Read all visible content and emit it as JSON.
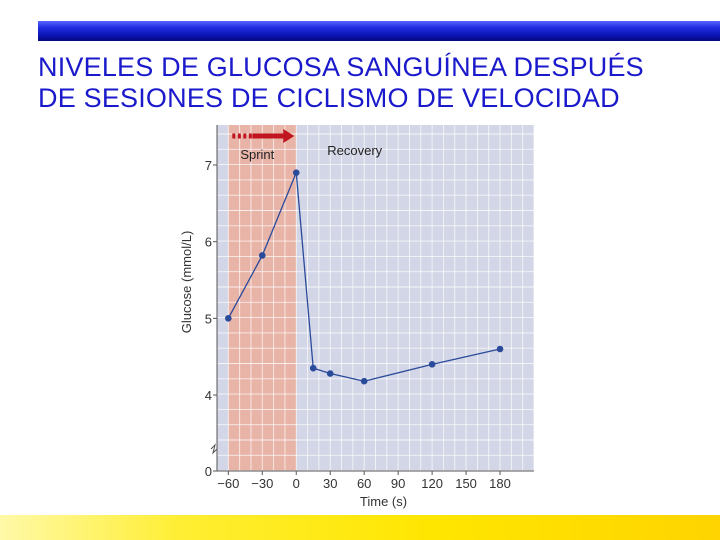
{
  "slide": {
    "title_line1": "NIVELES DE GLUCOSA SANGUÍNEA DESPUÉS",
    "title_line2": "DE SESIONES DE CICLISMO DE VELOCIDAD",
    "title_color": "#1a1acc",
    "top_bar_color": "#1f2ae0",
    "bottom_bar_color": "#ffe600"
  },
  "chart_data": {
    "type": "line",
    "title": "",
    "xlabel": "Time (s)",
    "ylabel": "Glucose (mmol/L)",
    "x_ticks": [
      -60,
      -30,
      0,
      30,
      60,
      90,
      120,
      150,
      180
    ],
    "x_tick_labels": [
      "−60",
      "−30",
      "0",
      "30",
      "60",
      "90",
      "120",
      "150",
      "180"
    ],
    "y_ticks": [
      0,
      4,
      5,
      6,
      7
    ],
    "y_axis_break": true,
    "xlim": [
      -70,
      210
    ],
    "ylim": [
      3.2,
      7.5
    ],
    "grid": true,
    "series": [
      {
        "color": "#2a4a9a",
        "x": [
          -60,
          -30,
          0,
          15,
          30,
          60,
          120,
          180
        ],
        "y": [
          5.0,
          5.82,
          6.9,
          4.35,
          4.28,
          4.18,
          4.4,
          4.6
        ]
      }
    ],
    "regions": [
      {
        "label": "Sprint",
        "x_start": -60,
        "x_end": 0,
        "color": "#e8b4a8",
        "arrow_color": "#c0141e"
      },
      {
        "label": "Recovery",
        "x_start": 0,
        "x_end": 210,
        "color": "#d3d6e6"
      }
    ]
  }
}
